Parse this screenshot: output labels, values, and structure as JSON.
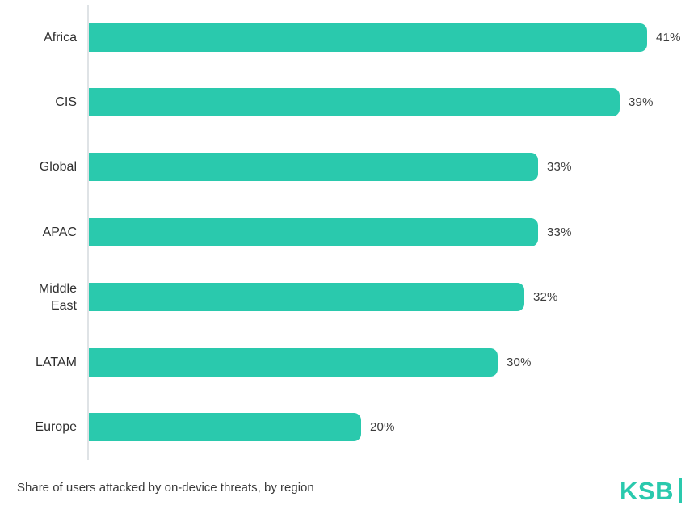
{
  "chart_data": {
    "type": "bar",
    "orientation": "horizontal",
    "title": "Share of users attacked by on-device threats, by region",
    "xlabel": "",
    "ylabel": "",
    "categories": [
      "Africa",
      "CIS",
      "Global",
      "APAC",
      "Middle East",
      "LATAM",
      "Europe"
    ],
    "values": [
      41,
      39,
      33,
      33,
      32,
      30,
      20
    ],
    "display_values": [
      "41%",
      "39%",
      "33%",
      "33%",
      "32%",
      "30%",
      "20%"
    ],
    "xlim": [
      0,
      43
    ],
    "grid": false,
    "legend": false,
    "bar_color": "#2AC9AD",
    "axis_line_color": "#dfe3e6"
  },
  "branding": {
    "logo_text": "KSB"
  },
  "colors": {
    "accent": "#2AC9AD",
    "label_text": "#2f2f2f",
    "value_text": "#3c3c3c"
  }
}
